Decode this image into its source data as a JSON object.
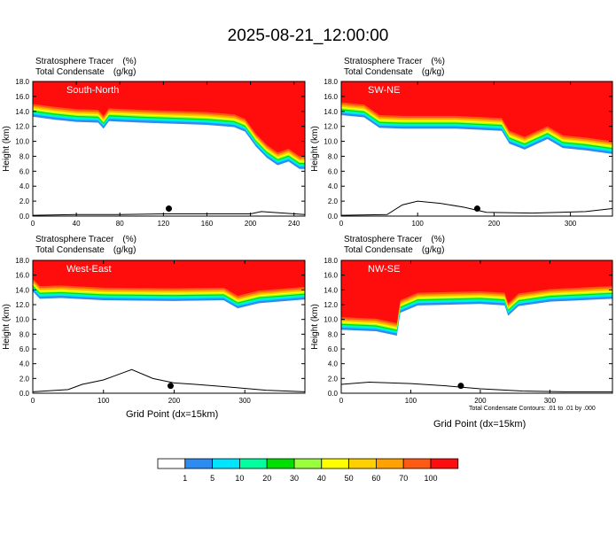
{
  "title": "2025-08-21_12:00:00",
  "field_labels": {
    "tracer": "Stratosphere Tracer",
    "tracer_units": "(%)",
    "condensate": "Total Condensate",
    "condensate_units": "(g/kg)"
  },
  "footnote": "Total Condensate Contours: .01 to .01 by .000",
  "x_axis_label": "Grid Point (dx=15km)",
  "y_axis_label": "Height (km)",
  "colors": {
    "levels": [
      "#ffffff",
      "#2d8cf0",
      "#00e5ff",
      "#00ff9f",
      "#00e000",
      "#9aff3c",
      "#ffff00",
      "#ffd000",
      "#ffa200",
      "#ff5a14",
      "#ff0d0d"
    ]
  },
  "chart_data": [
    {
      "type": "heatmap",
      "panel": "South-North",
      "xlim": [
        0,
        250
      ],
      "ylim": [
        0,
        18
      ],
      "xticks": [
        0,
        40,
        80,
        120,
        160,
        200,
        240
      ],
      "yticks": [
        "0.0",
        "2.0",
        "4.0",
        "6.0",
        "8.0",
        "10.0",
        "12.0",
        "14.0",
        "16.0",
        "18.0"
      ],
      "tropopause": [
        [
          0,
          15.0
        ],
        [
          20,
          14.6
        ],
        [
          40,
          14.3
        ],
        [
          60,
          14.2
        ],
        [
          65,
          13.4
        ],
        [
          70,
          14.4
        ],
        [
          100,
          14.2
        ],
        [
          140,
          14.0
        ],
        [
          160,
          13.9
        ],
        [
          185,
          13.6
        ],
        [
          195,
          13.0
        ],
        [
          205,
          11.0
        ],
        [
          215,
          9.5
        ],
        [
          225,
          8.5
        ],
        [
          235,
          9.0
        ],
        [
          245,
          8.0
        ],
        [
          250,
          8.0
        ]
      ],
      "terrain": [
        [
          0,
          0.1
        ],
        [
          40,
          0.2
        ],
        [
          80,
          0.2
        ],
        [
          120,
          0.3
        ],
        [
          160,
          0.3
        ],
        [
          200,
          0.3
        ],
        [
          210,
          0.6
        ],
        [
          220,
          0.5
        ],
        [
          250,
          0.2
        ]
      ],
      "marker": {
        "x": 125,
        "y": 1.0
      }
    },
    {
      "type": "heatmap",
      "panel": "SW-NE",
      "xlim": [
        0,
        355
      ],
      "ylim": [
        0,
        18
      ],
      "xticks": [
        0,
        100,
        200,
        300
      ],
      "yticks": [
        "0.0",
        "2.0",
        "4.0",
        "6.0",
        "8.0",
        "10.0",
        "12.0",
        "14.0",
        "16.0",
        "18.0"
      ],
      "tropopause": [
        [
          0,
          15.2
        ],
        [
          30,
          14.9
        ],
        [
          50,
          13.5
        ],
        [
          80,
          13.4
        ],
        [
          150,
          13.4
        ],
        [
          210,
          13.1
        ],
        [
          220,
          11.4
        ],
        [
          240,
          10.6
        ],
        [
          270,
          12.0
        ],
        [
          290,
          10.8
        ],
        [
          320,
          10.5
        ],
        [
          355,
          10.0
        ]
      ],
      "terrain": [
        [
          0,
          0.1
        ],
        [
          60,
          0.2
        ],
        [
          80,
          1.5
        ],
        [
          100,
          2.0
        ],
        [
          130,
          1.7
        ],
        [
          160,
          1.2
        ],
        [
          190,
          0.5
        ],
        [
          250,
          0.4
        ],
        [
          320,
          0.6
        ],
        [
          355,
          1.0
        ]
      ],
      "marker": {
        "x": 178,
        "y": 1.0
      }
    },
    {
      "type": "heatmap",
      "panel": "West-East",
      "xlim": [
        0,
        385
      ],
      "ylim": [
        0,
        18
      ],
      "xticks": [
        0,
        100,
        200,
        300
      ],
      "yticks": [
        "0.0",
        "2.0",
        "4.0",
        "6.0",
        "8.0",
        "10.0",
        "12.0",
        "14.0",
        "16.0",
        "18.0"
      ],
      "tropopause": [
        [
          0,
          15.5
        ],
        [
          10,
          14.5
        ],
        [
          40,
          14.6
        ],
        [
          100,
          14.3
        ],
        [
          200,
          14.2
        ],
        [
          270,
          14.3
        ],
        [
          290,
          13.2
        ],
        [
          320,
          13.9
        ],
        [
          385,
          14.4
        ]
      ],
      "terrain": [
        [
          0,
          0.2
        ],
        [
          50,
          0.5
        ],
        [
          70,
          1.2
        ],
        [
          100,
          1.8
        ],
        [
          140,
          3.2
        ],
        [
          170,
          2.0
        ],
        [
          200,
          1.4
        ],
        [
          230,
          1.2
        ],
        [
          270,
          0.9
        ],
        [
          330,
          0.4
        ],
        [
          385,
          0.2
        ]
      ],
      "marker": {
        "x": 195,
        "y": 1.0
      }
    },
    {
      "type": "heatmap",
      "panel": "NW-SE",
      "xlim": [
        0,
        390
      ],
      "ylim": [
        0,
        18
      ],
      "xticks": [
        0,
        100,
        200,
        300
      ],
      "yticks": [
        "0.0",
        "2.0",
        "4.0",
        "6.0",
        "8.0",
        "10.0",
        "12.0",
        "14.0",
        "16.0",
        "18.0"
      ],
      "tropopause": [
        [
          0,
          10.3
        ],
        [
          50,
          10.1
        ],
        [
          80,
          9.5
        ],
        [
          85,
          12.6
        ],
        [
          110,
          13.6
        ],
        [
          200,
          13.8
        ],
        [
          235,
          13.6
        ],
        [
          240,
          12.2
        ],
        [
          255,
          13.5
        ],
        [
          300,
          14.1
        ],
        [
          390,
          14.5
        ]
      ],
      "terrain": [
        [
          0,
          1.2
        ],
        [
          40,
          1.5
        ],
        [
          100,
          1.3
        ],
        [
          150,
          1.0
        ],
        [
          200,
          0.6
        ],
        [
          260,
          0.3
        ],
        [
          320,
          0.2
        ],
        [
          390,
          0.2
        ]
      ],
      "marker": {
        "x": 172,
        "y": 1.0
      }
    }
  ],
  "colorbar": {
    "labels": [
      "1",
      "5",
      "10",
      "20",
      "30",
      "40",
      "50",
      "60",
      "70",
      "100"
    ]
  }
}
